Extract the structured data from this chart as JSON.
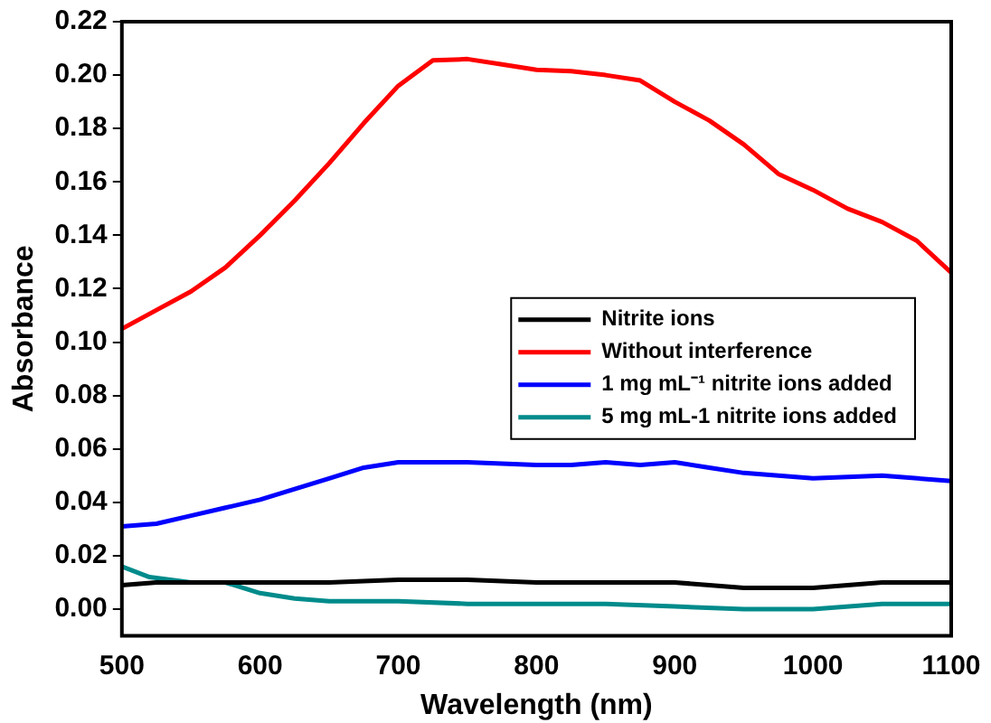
{
  "chart_data": {
    "type": "line",
    "xlabel": "Wavelength (nm)",
    "ylabel": "Absorbance",
    "xlim": [
      500,
      1100
    ],
    "ylim": [
      -0.01,
      0.22
    ],
    "xticks": [
      500,
      600,
      700,
      800,
      900,
      1000,
      1100
    ],
    "yticks": [
      {
        "value": 0,
        "label": "0.00"
      },
      0.02,
      0.04,
      0.06,
      0.08,
      {
        "value": 0.1,
        "label": "0.10"
      },
      0.12,
      0.14,
      0.16,
      0.18,
      {
        "value": 0.2,
        "label": "0.20"
      },
      0.22
    ],
    "grid": false,
    "legend": "right",
    "marker": "none",
    "line_style": "solid",
    "series": [
      {
        "name": "Nitrite ions",
        "color": "#000000",
        "x": [
          500,
          525,
          550,
          575,
          600,
          650,
          700,
          750,
          800,
          850,
          900,
          925,
          950,
          975,
          1000,
          1025,
          1050,
          1100
        ],
        "values": [
          0.009,
          0.01,
          0.01,
          0.01,
          0.01,
          0.01,
          0.011,
          0.011,
          0.01,
          0.01,
          0.01,
          0.009,
          0.008,
          0.008,
          0.008,
          0.009,
          0.01,
          0.01
        ]
      },
      {
        "name": "Without interference",
        "color": "#ff0000",
        "x": [
          500,
          525,
          550,
          575,
          600,
          625,
          650,
          675,
          700,
          725,
          750,
          775,
          800,
          825,
          850,
          875,
          900,
          925,
          950,
          975,
          1000,
          1025,
          1050,
          1075,
          1100
        ],
        "values": [
          0.105,
          0.112,
          0.119,
          0.128,
          0.14,
          0.153,
          0.167,
          0.182,
          0.196,
          0.2055,
          0.206,
          0.204,
          0.202,
          0.2015,
          0.2,
          0.198,
          0.19,
          0.183,
          0.174,
          0.163,
          0.157,
          0.15,
          0.145,
          0.138,
          0.126
        ]
      },
      {
        "name": "1 mg mL⁻¹ nitrite ions added",
        "color": "#0000ff",
        "x": [
          500,
          525,
          550,
          575,
          600,
          625,
          650,
          675,
          700,
          750,
          800,
          825,
          850,
          875,
          900,
          925,
          950,
          975,
          1000,
          1050,
          1100
        ],
        "values": [
          0.031,
          0.032,
          0.035,
          0.038,
          0.041,
          0.045,
          0.049,
          0.053,
          0.055,
          0.055,
          0.054,
          0.054,
          0.055,
          0.054,
          0.055,
          0.053,
          0.051,
          0.05,
          0.049,
          0.05,
          0.048
        ]
      },
      {
        "name": "5 mg mL-1 nitrite ions added",
        "color": "#008b8b",
        "x": [
          500,
          520,
          550,
          575,
          600,
          625,
          650,
          700,
          750,
          800,
          850,
          900,
          950,
          1000,
          1050,
          1100
        ],
        "values": [
          0.016,
          0.012,
          0.01,
          0.01,
          0.006,
          0.004,
          0.003,
          0.003,
          0.002,
          0.002,
          0.002,
          0.001,
          0.0,
          0.0,
          0.002,
          0.002
        ]
      }
    ]
  }
}
